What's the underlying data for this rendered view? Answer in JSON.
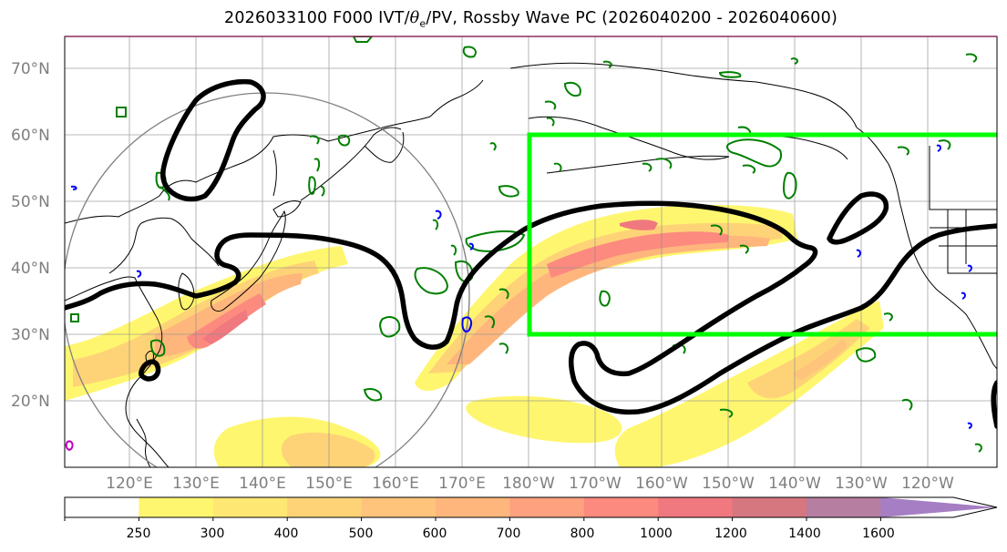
{
  "title": {
    "prefix": "2026033100 F000 IVT/",
    "theta": "θ",
    "sub_e": "e",
    "suffix": "/PV, Rossby Wave PC (2026040200 - 2026040600)"
  },
  "axes": {
    "lat_labels": [
      "70°N",
      "60°N",
      "50°N",
      "40°N",
      "30°N",
      "20°N"
    ],
    "lon_labels": [
      "120°E",
      "130°E",
      "140°E",
      "150°E",
      "160°E",
      "170°E",
      "180°W",
      "170°W",
      "160°W",
      "150°W",
      "140°W",
      "130°W",
      "120°W"
    ],
    "grid": true
  },
  "colorbar": {
    "labels": [
      "250",
      "300",
      "400",
      "500",
      "600",
      "700",
      "800",
      "1000",
      "1200",
      "1400",
      "1600"
    ],
    "colors": [
      "#ffffff",
      "#fff66f",
      "#ffe773",
      "#fed377",
      "#fec47b",
      "#feb67d",
      "#fea17f",
      "#fc8a7f",
      "#f0787f",
      "#d6767f",
      "#b67ea0",
      "#a67ec3"
    ],
    "extend": "max"
  },
  "box": {
    "color": "#00ff00"
  },
  "colors": {
    "pv_contour": "#000000",
    "theta_e_contour": "#008000",
    "minor_contour": "#0000ff",
    "coastline": "#000000",
    "circle": "#808080"
  }
}
